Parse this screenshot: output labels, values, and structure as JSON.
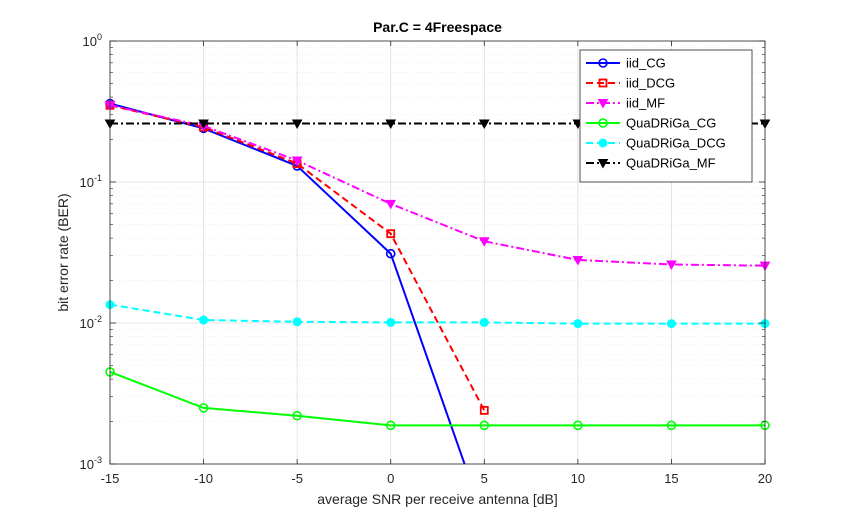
{
  "chart_data": {
    "type": "line",
    "title": "Par.C = 4Freespace",
    "xlabel": "average SNR per receive antenna [dB]",
    "ylabel": "bit error rate (BER)",
    "xlim": [
      -15,
      20
    ],
    "ylim": [
      0.001,
      1
    ],
    "yscale": "log",
    "grid": true,
    "minor_grid": true,
    "legend_position": "top-right",
    "x": [
      -15,
      -10,
      -5,
      0,
      5,
      10,
      15,
      20
    ],
    "x_ticks": [
      "-15",
      "-10",
      "-5",
      "0",
      "5",
      "10",
      "15",
      "20"
    ],
    "y_ticks": [
      {
        "value": 0.001,
        "base": "10",
        "exp": "-3"
      },
      {
        "value": 0.01,
        "base": "10",
        "exp": "-2"
      },
      {
        "value": 0.1,
        "base": "10",
        "exp": "-1"
      },
      {
        "value": 1,
        "base": "10",
        "exp": "0"
      }
    ],
    "series": [
      {
        "name": "iid_CG",
        "color": "#0000ff",
        "dash": "solid",
        "marker": "circle",
        "values": [
          0.36,
          0.24,
          0.13,
          0.031,
          0.0004,
          null,
          null,
          null
        ]
      },
      {
        "name": "iid_DCG",
        "color": "#ff0000",
        "dash": "dashed",
        "marker": "square",
        "values": [
          0.35,
          0.245,
          0.135,
          0.043,
          0.0024,
          null,
          null,
          null
        ]
      },
      {
        "name": "iid_MF",
        "color": "#ff00ff",
        "dash": "dashdot",
        "marker": "triangle-down",
        "values": [
          0.35,
          0.25,
          0.142,
          0.07,
          0.038,
          0.028,
          0.026,
          0.0255
        ]
      },
      {
        "name": "QuaDRiGa_CG",
        "color": "#00ff00",
        "dash": "solid",
        "marker": "circle",
        "values": [
          0.0045,
          0.0025,
          0.0022,
          0.00188,
          0.00188,
          0.00188,
          0.00188,
          0.00188
        ]
      },
      {
        "name": "QuaDRiGa_DCG",
        "color": "#00ffff",
        "dash": "dashed",
        "marker": "circle-filled",
        "values": [
          0.0135,
          0.0105,
          0.0102,
          0.0101,
          0.0101,
          0.0099,
          0.0099,
          0.0099
        ]
      },
      {
        "name": "QuaDRiGa_MF",
        "color": "#000000",
        "dash": "dashdot",
        "marker": "triangle-down",
        "values": [
          0.26,
          0.26,
          0.26,
          0.26,
          0.26,
          0.26,
          0.26,
          0.26
        ]
      }
    ]
  }
}
